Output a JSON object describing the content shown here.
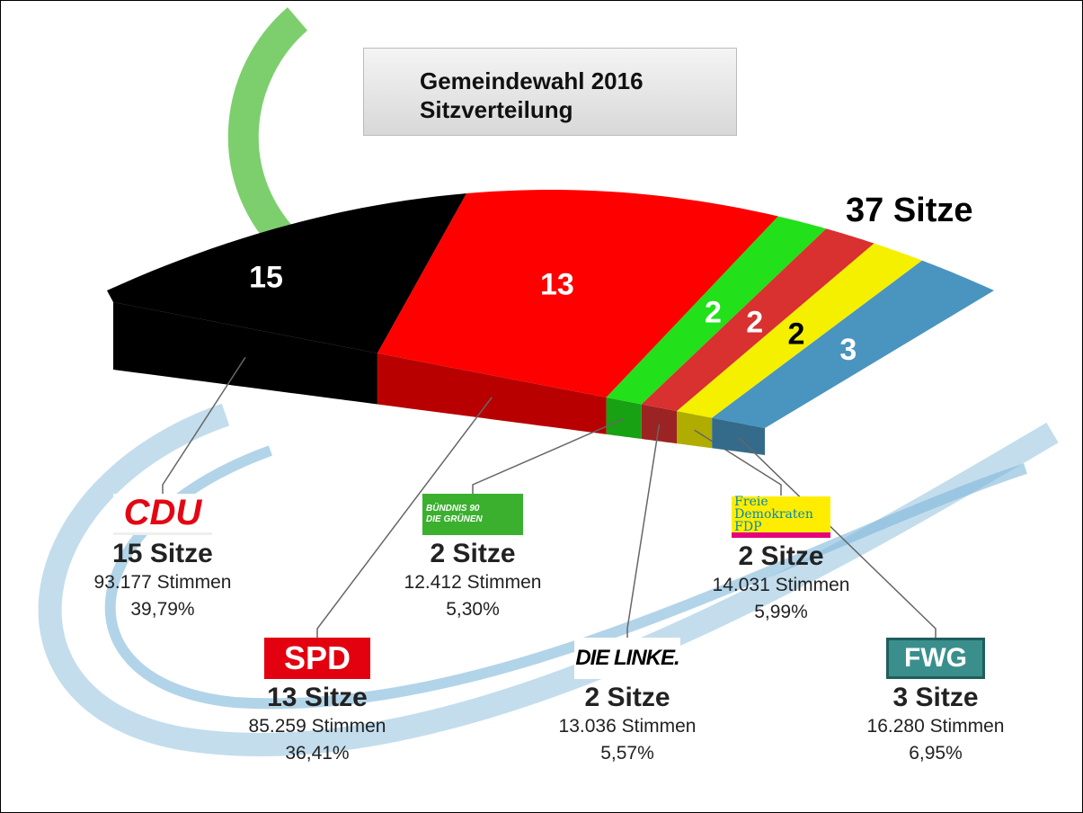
{
  "chart_data": {
    "type": "seat-arc",
    "title": "Gemeindewahl 2016",
    "subtitle": "Sitzverteilung",
    "total": 37,
    "total_label": "37 Sitze",
    "categories": [
      "CDU",
      "SPD",
      "BÜNDNIS 90 DIE GRÜNEN",
      "DIE LINKE.",
      "Freie Demokraten FDP",
      "FWG"
    ],
    "colors": [
      "#000000",
      "#ff0000",
      "#22e01a",
      "#d93030",
      "#f4f000",
      "#4a94c0"
    ],
    "values": [
      15,
      13,
      2,
      2,
      2,
      3
    ],
    "value_labels": [
      "15 Sitze",
      "13 Sitze",
      "2 Sitze",
      "2 Sitze",
      "2 Sitze",
      "3 Sitze"
    ],
    "votes": [
      93177,
      85259,
      12412,
      13036,
      14031,
      16280
    ],
    "vote_labels": [
      "93.177 Stimmen",
      "85.259 Stimmen",
      "12.412 Stimmen",
      "13.036 Stimmen",
      "14.031 Stimmen",
      "16.280 Stimmen"
    ],
    "percents": [
      39.79,
      36.41,
      5.3,
      5.57,
      5.99,
      6.95
    ],
    "percent_labels": [
      "39,79%",
      "36,41%",
      "5,30%",
      "5,57%",
      "5,99%",
      "6,95%"
    ]
  }
}
